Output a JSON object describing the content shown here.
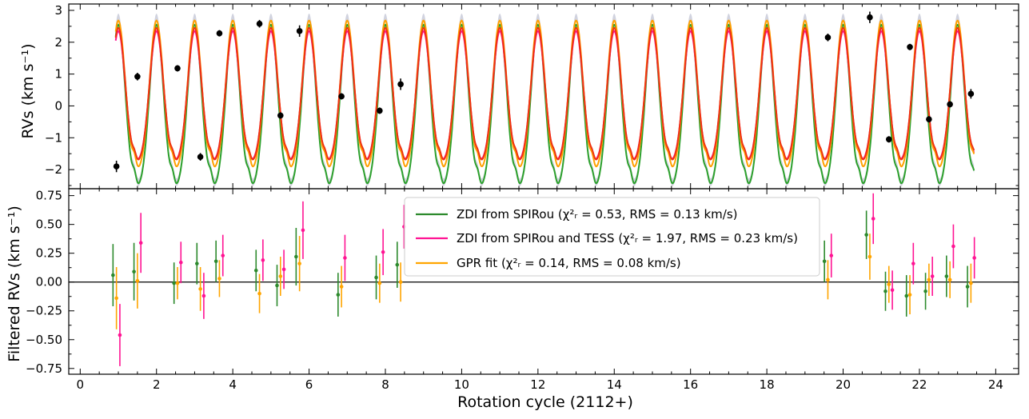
{
  "chart_data": [
    {
      "type": "line",
      "panel": "top",
      "ylabel": "RVs (km s⁻¹)",
      "ylim": [
        -2.6,
        3.2
      ],
      "xlim": [
        -0.3,
        24.6
      ],
      "yticks": [
        -2,
        -1,
        0,
        1,
        2,
        3
      ],
      "ytick_labels": [
        "−2",
        "−1",
        "0",
        "1",
        "2",
        "3"
      ],
      "model_period": 1.0,
      "series": [
        {
          "type": "band",
          "color": "#c9cbd9",
          "low": -2.45,
          "high": 2.78,
          "bump": 0.55
        },
        {
          "type": "line",
          "color": "#2ca02c",
          "low": -2.48,
          "high": 2.55,
          "bump": 0.55
        },
        {
          "type": "line",
          "color": "#ff1493",
          "low": -1.68,
          "high": 2.35,
          "bump": 0.25
        },
        {
          "type": "line",
          "color": "#ffa000",
          "low": -1.95,
          "high": 2.68,
          "bump": 0.6
        },
        {
          "type": "line",
          "color": "#ee3311",
          "low": -1.72,
          "high": 2.45,
          "bump": 0.45
        }
      ],
      "points": [
        {
          "x": 0.95,
          "y": -1.9,
          "err": 0.18
        },
        {
          "x": 1.5,
          "y": 0.92,
          "err": 0.12
        },
        {
          "x": 2.55,
          "y": 1.18,
          "err": 0.1
        },
        {
          "x": 3.15,
          "y": -1.6,
          "err": 0.12
        },
        {
          "x": 3.65,
          "y": 2.28,
          "err": 0.1
        },
        {
          "x": 4.7,
          "y": 2.58,
          "err": 0.12
        },
        {
          "x": 5.25,
          "y": -0.3,
          "err": 0.1
        },
        {
          "x": 5.75,
          "y": 2.35,
          "err": 0.18
        },
        {
          "x": 6.85,
          "y": 0.3,
          "err": 0.1
        },
        {
          "x": 7.85,
          "y": -0.15,
          "err": 0.1
        },
        {
          "x": 8.4,
          "y": 0.68,
          "err": 0.18
        },
        {
          "x": 19.6,
          "y": 2.15,
          "err": 0.12
        },
        {
          "x": 20.7,
          "y": 2.78,
          "err": 0.18
        },
        {
          "x": 21.2,
          "y": -1.05,
          "err": 0.1
        },
        {
          "x": 21.75,
          "y": 1.85,
          "err": 0.1
        },
        {
          "x": 22.25,
          "y": -0.42,
          "err": 0.1
        },
        {
          "x": 22.8,
          "y": 0.05,
          "err": 0.1
        },
        {
          "x": 23.35,
          "y": 0.38,
          "err": 0.15
        }
      ]
    },
    {
      "type": "scatter",
      "panel": "bottom",
      "xlabel": "Rotation cycle (2112+)",
      "ylabel": "Filtered RVs (km s⁻¹)",
      "xlim": [
        -0.3,
        24.6
      ],
      "ylim": [
        -0.8,
        0.81
      ],
      "xticks": [
        0,
        2,
        4,
        6,
        8,
        10,
        12,
        14,
        16,
        18,
        20,
        22,
        24
      ],
      "xtick_labels": [
        "0",
        "2",
        "4",
        "6",
        "8",
        "10",
        "12",
        "14",
        "16",
        "18",
        "20",
        "22",
        "24"
      ],
      "yticks": [
        -0.75,
        -0.5,
        -0.25,
        0.0,
        0.25,
        0.5,
        0.75
      ],
      "ytick_labels": [
        "−0.75",
        "−0.50",
        "−0.25",
        "0.00",
        "0.25",
        "0.50",
        "0.75"
      ],
      "x": [
        0.95,
        1.5,
        2.55,
        3.15,
        3.65,
        4.7,
        5.25,
        5.75,
        6.85,
        7.85,
        8.4,
        19.6,
        20.7,
        21.2,
        21.75,
        22.25,
        22.8,
        23.35
      ],
      "series": [
        {
          "name": "ZDI from SPIRou",
          "color": "#2d8a2d",
          "offset": -0.09,
          "values": [
            0.06,
            0.09,
            -0.01,
            0.16,
            0.18,
            0.1,
            -0.03,
            0.22,
            -0.11,
            0.04,
            0.15,
            0.18,
            0.41,
            -0.08,
            -0.12,
            -0.08,
            0.05,
            -0.04
          ],
          "err": [
            0.27,
            0.25,
            0.18,
            0.18,
            0.18,
            0.18,
            0.18,
            0.25,
            0.19,
            0.19,
            0.2,
            0.18,
            0.21,
            0.17,
            0.18,
            0.16,
            0.18,
            0.18
          ]
        },
        {
          "name": "ZDI from SPIRou and TESS",
          "color": "#ff1493",
          "offset": 0.09,
          "values": [
            -0.46,
            0.34,
            0.17,
            -0.12,
            0.23,
            0.19,
            0.11,
            0.45,
            0.21,
            0.26,
            0.48,
            0.23,
            0.55,
            -0.07,
            0.16,
            0.05,
            0.31,
            0.21
          ],
          "err": [
            0.27,
            0.26,
            0.18,
            0.2,
            0.18,
            0.18,
            0.17,
            0.25,
            0.2,
            0.2,
            0.19,
            0.19,
            0.22,
            0.17,
            0.18,
            0.17,
            0.19,
            0.18
          ]
        },
        {
          "name": "GPR fit",
          "color": "#ffa500",
          "offset": 0.0,
          "values": [
            -0.14,
            0.01,
            -0.01,
            -0.06,
            0.03,
            -0.1,
            0.05,
            0.16,
            -0.04,
            -0.01,
            0.0,
            0.02,
            0.22,
            -0.02,
            -0.11,
            0.02,
            0.02,
            -0.01
          ],
          "err": [
            0.27,
            0.24,
            0.14,
            0.19,
            0.16,
            0.17,
            0.17,
            0.24,
            0.18,
            0.17,
            0.17,
            0.17,
            0.2,
            0.16,
            0.17,
            0.14,
            0.16,
            0.17
          ]
        }
      ],
      "legend": {
        "placement": "top-center",
        "entries": [
          {
            "color": "#2d8a2d",
            "text": "ZDI from SPIRou (χ²ᵣ = 0.53, RMS = 0.13 km/s)"
          },
          {
            "color": "#ff1493",
            "text": "ZDI from SPIRou and TESS (χ²ᵣ = 1.97, RMS = 0.23 km/s)"
          },
          {
            "color": "#ffa500",
            "text": "GPR fit (χ²ᵣ = 0.14, RMS = 0.08 km/s)"
          }
        ]
      }
    }
  ]
}
